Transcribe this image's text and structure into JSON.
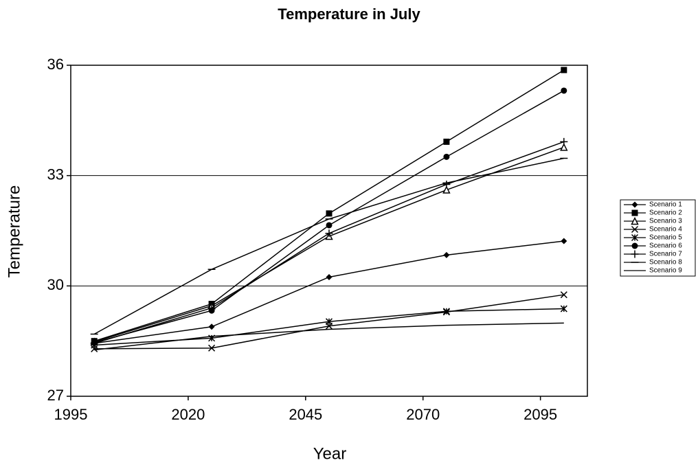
{
  "chart_data": {
    "type": "line",
    "title": "Temperature in July",
    "x_label": "Year",
    "y_label": "Temperature",
    "x": [
      2000,
      2025,
      2050,
      2075,
      2100
    ],
    "xlim": [
      1995,
      2105
    ],
    "xticks": [
      1995,
      2020,
      2045,
      2070,
      2095
    ],
    "ylim": [
      27,
      36
    ],
    "yticks": [
      27,
      30,
      33,
      36
    ],
    "grid": true,
    "legend": "right",
    "series": [
      {
        "name": "Scenario 1",
        "color": "#000000",
        "marker": "diamond",
        "values": [
          28.44,
          28.89,
          30.24,
          30.84,
          31.22
        ]
      },
      {
        "name": "Scenario 2",
        "color": "#000000",
        "marker": "square",
        "values": [
          28.5,
          29.51,
          31.97,
          33.92,
          35.87
        ]
      },
      {
        "name": "Scenario 3",
        "color": "#000000",
        "marker": "triangle",
        "values": [
          28.48,
          29.46,
          31.35,
          32.61,
          33.77
        ]
      },
      {
        "name": "Scenario 4",
        "color": "#000000",
        "marker": "x",
        "values": [
          28.29,
          28.31,
          28.91,
          29.29,
          29.76
        ]
      },
      {
        "name": "Scenario 5",
        "color": "#000000",
        "marker": "asterisk",
        "values": [
          28.39,
          28.58,
          29.03,
          29.31,
          29.38
        ]
      },
      {
        "name": "Scenario 6",
        "color": "#000000",
        "marker": "circle",
        "values": [
          28.46,
          29.33,
          31.65,
          33.51,
          35.31
        ]
      },
      {
        "name": "Scenario 7",
        "color": "#000000",
        "marker": "plus",
        "values": [
          28.44,
          29.4,
          31.43,
          32.76,
          33.92
        ]
      },
      {
        "name": "Scenario 8",
        "color": "#000000",
        "marker": "dash",
        "values": [
          28.69,
          30.45,
          31.82,
          32.8,
          33.47
        ]
      },
      {
        "name": "Scenario 9",
        "color": "#000000",
        "marker": "none",
        "values": [
          28.26,
          28.63,
          28.82,
          28.93,
          28.99
        ]
      }
    ]
  }
}
